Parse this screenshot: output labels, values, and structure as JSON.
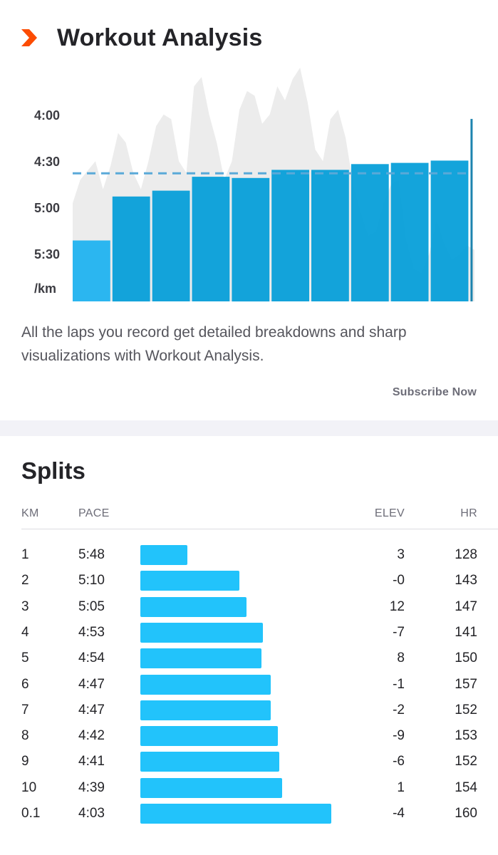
{
  "workout_analysis": {
    "title": "Workout Analysis",
    "description": "All the laps you record get detailed breakdowns and sharp visualizations with Workout Analysis.",
    "subscribe_label": "Subscribe Now",
    "colors": {
      "brand": "#fc4c02",
      "lap_bar": "#009cd8",
      "first_lap_bar": "#2bb6f0",
      "elevation": "#ececec",
      "average_line": "#5aa9d8"
    }
  },
  "chart_data": {
    "type": "bar",
    "y_tick_labels": [
      "4:00",
      "4:30",
      "5:00",
      "5:30",
      "/km"
    ],
    "pace_axis_seconds_per_km": [
      240,
      360
    ],
    "laps_pace_seconds": [
      348,
      310,
      305,
      293,
      294,
      287,
      287,
      282,
      281,
      279,
      243
    ],
    "lap_distance_km": [
      1,
      1,
      1,
      1,
      1,
      1,
      1,
      1,
      1,
      1,
      0.1
    ],
    "average_pace_seconds": 290,
    "elevation_profile": [
      0.42,
      0.52,
      0.56,
      0.6,
      0.48,
      0.58,
      0.72,
      0.68,
      0.55,
      0.48,
      0.6,
      0.75,
      0.8,
      0.78,
      0.6,
      0.55,
      0.92,
      0.96,
      0.8,
      0.68,
      0.52,
      0.6,
      0.82,
      0.9,
      0.88,
      0.76,
      0.8,
      0.92,
      0.86,
      0.95,
      1.0,
      0.85,
      0.65,
      0.6,
      0.78,
      0.82,
      0.7,
      0.5,
      0.38,
      0.28,
      0.3,
      0.42,
      0.5,
      0.52,
      0.26,
      0.14,
      0.12,
      0.2,
      0.35,
      0.25,
      0.18,
      0.2,
      0.24,
      0.22
    ]
  },
  "splits": {
    "title": "Splits",
    "headers": {
      "km": "KM",
      "pace": "PACE",
      "elev": "ELEV",
      "hr": "HR"
    },
    "rows": [
      {
        "km": "1",
        "pace": "5:48",
        "elev": "3",
        "hr": "128",
        "pace_seconds": 348
      },
      {
        "km": "2",
        "pace": "5:10",
        "elev": "-0",
        "hr": "143",
        "pace_seconds": 310
      },
      {
        "km": "3",
        "pace": "5:05",
        "elev": "12",
        "hr": "147",
        "pace_seconds": 305
      },
      {
        "km": "4",
        "pace": "4:53",
        "elev": "-7",
        "hr": "141",
        "pace_seconds": 293
      },
      {
        "km": "5",
        "pace": "4:54",
        "elev": "8",
        "hr": "150",
        "pace_seconds": 294
      },
      {
        "km": "6",
        "pace": "4:47",
        "elev": "-1",
        "hr": "157",
        "pace_seconds": 287
      },
      {
        "km": "7",
        "pace": "4:47",
        "elev": "-2",
        "hr": "152",
        "pace_seconds": 287
      },
      {
        "km": "8",
        "pace": "4:42",
        "elev": "-9",
        "hr": "153",
        "pace_seconds": 282
      },
      {
        "km": "9",
        "pace": "4:41",
        "elev": "-6",
        "hr": "152",
        "pace_seconds": 281
      },
      {
        "km": "10",
        "pace": "4:39",
        "elev": "1",
        "hr": "154",
        "pace_seconds": 279
      },
      {
        "km": "0.1",
        "pace": "4:03",
        "elev": "-4",
        "hr": "160",
        "pace_seconds": 243
      }
    ],
    "bar_color": "#22c3fb"
  }
}
